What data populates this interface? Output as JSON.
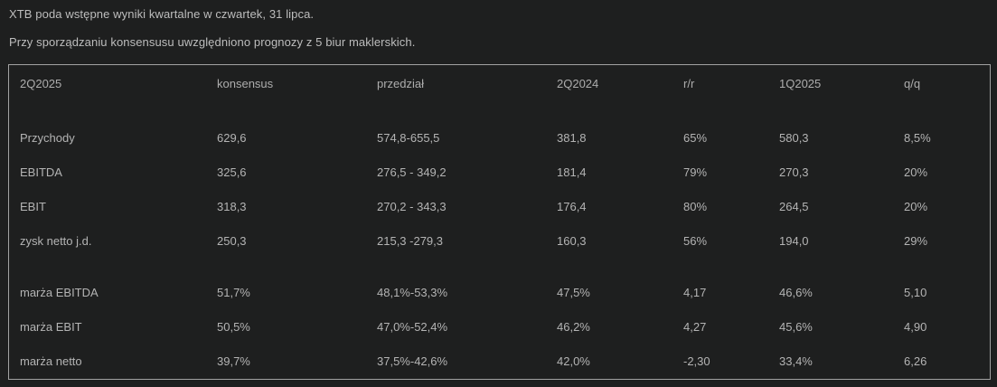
{
  "intro": {
    "line1": "XTB poda wstępne wyniki kwartalne w czwartek, 31 lipca.",
    "line2": "Przy sporządzaniu konsensusu uwzględniono prognozy z 5 biur maklerskich."
  },
  "table": {
    "headers": [
      "2Q2025",
      "konsensus",
      "przedział",
      "2Q2024",
      "r/r",
      "1Q2025",
      "q/q"
    ],
    "rows": [
      [
        "Przychody",
        "629,6",
        "574,8-655,5",
        "381,8",
        "65%",
        "580,3",
        "8,5%"
      ],
      [
        "EBITDA",
        "325,6",
        "276,5 - 349,2",
        "181,4",
        "79%",
        "270,3",
        "20%"
      ],
      [
        "EBIT",
        "318,3",
        "270,2 - 343,3",
        "176,4",
        "80%",
        "264,5",
        "20%"
      ],
      [
        "zysk netto j.d.",
        "250,3",
        "215,3 -279,3",
        "160,3",
        "56%",
        "194,0",
        "29%"
      ],
      [
        "marża EBITDA",
        "51,7%",
        "48,1%-53,3%",
        "47,5%",
        "4,17",
        "46,6%",
        "5,10"
      ],
      [
        "marża EBIT",
        "50,5%",
        "47,0%-52,4%",
        "46,2%",
        "4,27",
        "45,6%",
        "4,90"
      ],
      [
        "marża netto",
        "39,7%",
        "37,5%-42,6%",
        "42,0%",
        "-2,30",
        "33,4%",
        "6,26"
      ]
    ]
  },
  "colors": {
    "background": "#1e1f1f",
    "text": "#b4b4b4",
    "intro_text": "#bdbdbd",
    "panel_border": "#a2a2a2"
  }
}
